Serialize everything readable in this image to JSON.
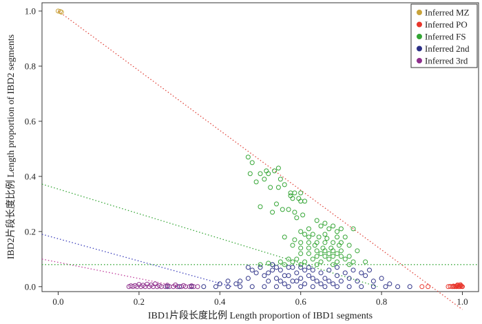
{
  "chart_data": {
    "type": "scatter",
    "xlabel": "IBD1片段长度比例  Length proportion of IBD1 segments",
    "ylabel": "IBD2片段长度比例  Length proportion of IBD2 segments",
    "xlim": [
      -0.04,
      1.04
    ],
    "ylim": [
      -0.018,
      1.03
    ],
    "xticks": [
      "0.0",
      "0.2",
      "0.4",
      "0.6",
      "0.8",
      "1.0"
    ],
    "yticks": [
      "0.0",
      "0.2",
      "0.4",
      "0.6",
      "0.8",
      "1.0"
    ],
    "legend_position": "top-right",
    "series": [
      {
        "name": "Inferred MZ",
        "color": "#c9a33a",
        "points": [
          [
            0.0,
            1.0
          ],
          [
            0.005,
            0.998
          ],
          [
            0.008,
            0.996
          ]
        ]
      },
      {
        "name": "Inferred PO",
        "color": "#e8352b",
        "points": [
          [
            0.9,
            0.0
          ],
          [
            0.915,
            0.0
          ],
          [
            0.965,
            0.0
          ],
          [
            0.97,
            0.001
          ],
          [
            0.975,
            0.0
          ],
          [
            0.978,
            0.002
          ],
          [
            0.98,
            0.0
          ],
          [
            0.983,
            0.001
          ],
          [
            0.985,
            0.0
          ],
          [
            0.987,
            0.003
          ],
          [
            0.99,
            0.0
          ],
          [
            0.992,
            0.002
          ],
          [
            0.994,
            0.0
          ],
          [
            0.996,
            0.004
          ],
          [
            0.998,
            0.001
          ],
          [
            1.0,
            0.0
          ],
          [
            0.988,
            0.006
          ],
          [
            0.995,
            0.007
          ]
        ]
      },
      {
        "name": "Inferred FS",
        "color": "#33a534",
        "points": [
          [
            0.47,
            0.47
          ],
          [
            0.48,
            0.45
          ],
          [
            0.475,
            0.41
          ],
          [
            0.5,
            0.41
          ],
          [
            0.515,
            0.42
          ],
          [
            0.52,
            0.41
          ],
          [
            0.51,
            0.39
          ],
          [
            0.49,
            0.38
          ],
          [
            0.535,
            0.42
          ],
          [
            0.545,
            0.43
          ],
          [
            0.55,
            0.39
          ],
          [
            0.56,
            0.37
          ],
          [
            0.525,
            0.36
          ],
          [
            0.545,
            0.36
          ],
          [
            0.575,
            0.34
          ],
          [
            0.575,
            0.33
          ],
          [
            0.58,
            0.32
          ],
          [
            0.585,
            0.34
          ],
          [
            0.6,
            0.34
          ],
          [
            0.595,
            0.32
          ],
          [
            0.6,
            0.31
          ],
          [
            0.61,
            0.31
          ],
          [
            0.54,
            0.3
          ],
          [
            0.555,
            0.28
          ],
          [
            0.57,
            0.28
          ],
          [
            0.585,
            0.27
          ],
          [
            0.605,
            0.26
          ],
          [
            0.5,
            0.29
          ],
          [
            0.53,
            0.27
          ],
          [
            0.59,
            0.25
          ],
          [
            0.64,
            0.24
          ],
          [
            0.66,
            0.23
          ],
          [
            0.68,
            0.22
          ],
          [
            0.65,
            0.22
          ],
          [
            0.62,
            0.21
          ],
          [
            0.69,
            0.2
          ],
          [
            0.67,
            0.21
          ],
          [
            0.7,
            0.21
          ],
          [
            0.73,
            0.21
          ],
          [
            0.61,
            0.19
          ],
          [
            0.63,
            0.19
          ],
          [
            0.66,
            0.19
          ],
          [
            0.69,
            0.18
          ],
          [
            0.71,
            0.18
          ],
          [
            0.56,
            0.18
          ],
          [
            0.585,
            0.17
          ],
          [
            0.6,
            0.16
          ],
          [
            0.62,
            0.16
          ],
          [
            0.64,
            0.16
          ],
          [
            0.66,
            0.16
          ],
          [
            0.68,
            0.16
          ],
          [
            0.7,
            0.16
          ],
          [
            0.72,
            0.15
          ],
          [
            0.58,
            0.15
          ],
          [
            0.6,
            0.14
          ],
          [
            0.62,
            0.14
          ],
          [
            0.64,
            0.13
          ],
          [
            0.66,
            0.13
          ],
          [
            0.68,
            0.13
          ],
          [
            0.7,
            0.13
          ],
          [
            0.74,
            0.13
          ],
          [
            0.6,
            0.12
          ],
          [
            0.62,
            0.12
          ],
          [
            0.64,
            0.11
          ],
          [
            0.66,
            0.11
          ],
          [
            0.68,
            0.11
          ],
          [
            0.7,
            0.11
          ],
          [
            0.72,
            0.11
          ],
          [
            0.57,
            0.1
          ],
          [
            0.59,
            0.1
          ],
          [
            0.63,
            0.1
          ],
          [
            0.67,
            0.1
          ],
          [
            0.71,
            0.1
          ],
          [
            0.55,
            0.09
          ],
          [
            0.58,
            0.09
          ],
          [
            0.61,
            0.09
          ],
          [
            0.65,
            0.09
          ],
          [
            0.69,
            0.09
          ],
          [
            0.73,
            0.09
          ],
          [
            0.76,
            0.09
          ],
          [
            0.53,
            0.08
          ],
          [
            0.56,
            0.08
          ],
          [
            0.6,
            0.08
          ],
          [
            0.64,
            0.08
          ],
          [
            0.68,
            0.08
          ],
          [
            0.72,
            0.08
          ],
          [
            0.65,
            0.12
          ],
          [
            0.67,
            0.12
          ],
          [
            0.69,
            0.12
          ],
          [
            0.635,
            0.15
          ],
          [
            0.655,
            0.14
          ],
          [
            0.675,
            0.14
          ],
          [
            0.695,
            0.15
          ],
          [
            0.6,
            0.2
          ],
          [
            0.62,
            0.18
          ],
          [
            0.645,
            0.18
          ],
          [
            0.665,
            0.175
          ],
          [
            0.5,
            0.08
          ],
          [
            0.52,
            0.085
          ]
        ]
      },
      {
        "name": "Inferred 2nd",
        "color": "#2b2f86",
        "points": [
          [
            0.27,
            0.0
          ],
          [
            0.3,
            0.0
          ],
          [
            0.33,
            0.0
          ],
          [
            0.36,
            0.0
          ],
          [
            0.39,
            0.0
          ],
          [
            0.42,
            0.0
          ],
          [
            0.45,
            0.0
          ],
          [
            0.48,
            0.0
          ],
          [
            0.51,
            0.0
          ],
          [
            0.54,
            0.0
          ],
          [
            0.57,
            0.0
          ],
          [
            0.6,
            0.0
          ],
          [
            0.63,
            0.0
          ],
          [
            0.66,
            0.0
          ],
          [
            0.69,
            0.0
          ],
          [
            0.72,
            0.0
          ],
          [
            0.75,
            0.0
          ],
          [
            0.78,
            0.0
          ],
          [
            0.81,
            0.0
          ],
          [
            0.84,
            0.0
          ],
          [
            0.87,
            0.0
          ],
          [
            0.45,
            0.02
          ],
          [
            0.47,
            0.03
          ],
          [
            0.49,
            0.05
          ],
          [
            0.5,
            0.07
          ],
          [
            0.52,
            0.02
          ],
          [
            0.52,
            0.05
          ],
          [
            0.53,
            0.08
          ],
          [
            0.54,
            0.03
          ],
          [
            0.55,
            0.06
          ],
          [
            0.56,
            0.01
          ],
          [
            0.56,
            0.04
          ],
          [
            0.57,
            0.07
          ],
          [
            0.58,
            0.02
          ],
          [
            0.59,
            0.05
          ],
          [
            0.6,
            0.03
          ],
          [
            0.6,
            0.07
          ],
          [
            0.61,
            0.01
          ],
          [
            0.62,
            0.04
          ],
          [
            0.63,
            0.06
          ],
          [
            0.64,
            0.02
          ],
          [
            0.65,
            0.05
          ],
          [
            0.66,
            0.03
          ],
          [
            0.67,
            0.06
          ],
          [
            0.68,
            0.01
          ],
          [
            0.69,
            0.04
          ],
          [
            0.7,
            0.02
          ],
          [
            0.71,
            0.05
          ],
          [
            0.72,
            0.03
          ],
          [
            0.74,
            0.02
          ],
          [
            0.76,
            0.04
          ],
          [
            0.78,
            0.02
          ],
          [
            0.8,
            0.03
          ],
          [
            0.82,
            0.01
          ],
          [
            0.48,
            0.06
          ],
          [
            0.51,
            0.04
          ],
          [
            0.53,
            0.06
          ],
          [
            0.55,
            0.02
          ],
          [
            0.57,
            0.04
          ],
          [
            0.59,
            0.02
          ],
          [
            0.61,
            0.06
          ],
          [
            0.63,
            0.03
          ],
          [
            0.65,
            0.01
          ],
          [
            0.67,
            0.02
          ],
          [
            0.69,
            0.07
          ],
          [
            0.58,
            0.07
          ],
          [
            0.62,
            0.07
          ],
          [
            0.54,
            0.07
          ],
          [
            0.47,
            0.07
          ],
          [
            0.73,
            0.06
          ],
          [
            0.75,
            0.05
          ],
          [
            0.77,
            0.06
          ],
          [
            0.4,
            0.01
          ],
          [
            0.42,
            0.02
          ],
          [
            0.44,
            0.01
          ]
        ]
      },
      {
        "name": "Inferred 3rd",
        "color": "#8e2f8c",
        "points": [
          [
            0.175,
            0.0
          ],
          [
            0.185,
            0.0
          ],
          [
            0.195,
            0.0
          ],
          [
            0.205,
            0.0
          ],
          [
            0.215,
            0.0
          ],
          [
            0.225,
            0.0
          ],
          [
            0.235,
            0.0
          ],
          [
            0.245,
            0.0
          ],
          [
            0.255,
            0.0
          ],
          [
            0.265,
            0.0
          ],
          [
            0.275,
            0.0
          ],
          [
            0.285,
            0.0
          ],
          [
            0.295,
            0.0
          ],
          [
            0.305,
            0.0
          ],
          [
            0.315,
            0.0
          ],
          [
            0.325,
            0.0
          ],
          [
            0.335,
            0.0
          ],
          [
            0.345,
            0.0
          ],
          [
            0.19,
            0.004
          ],
          [
            0.21,
            0.005
          ],
          [
            0.23,
            0.006
          ],
          [
            0.25,
            0.004
          ],
          [
            0.27,
            0.005
          ],
          [
            0.29,
            0.006
          ],
          [
            0.31,
            0.004
          ],
          [
            0.2,
            0.008
          ],
          [
            0.22,
            0.009
          ],
          [
            0.24,
            0.01
          ],
          [
            0.18,
            0.003
          ],
          [
            0.33,
            0.003
          ]
        ]
      }
    ],
    "reference_lines": [
      {
        "color": "#e0453c",
        "x": [
          0.0,
          1.0
        ],
        "y": [
          1.0,
          -0.083
        ]
      },
      {
        "color": "#33a534",
        "x": [
          -0.04,
          0.79
        ],
        "y": [
          0.372,
          0.0
        ]
      },
      {
        "color": "#3a3dbb",
        "x": [
          -0.04,
          0.43
        ],
        "y": [
          0.19,
          0.0
        ]
      },
      {
        "color": "#c0399a",
        "x": [
          -0.04,
          0.3
        ],
        "y": [
          0.1,
          0.0
        ]
      },
      {
        "color": "#33a534",
        "x": [
          -0.04,
          1.04
        ],
        "y": [
          0.08,
          0.08
        ]
      }
    ]
  }
}
